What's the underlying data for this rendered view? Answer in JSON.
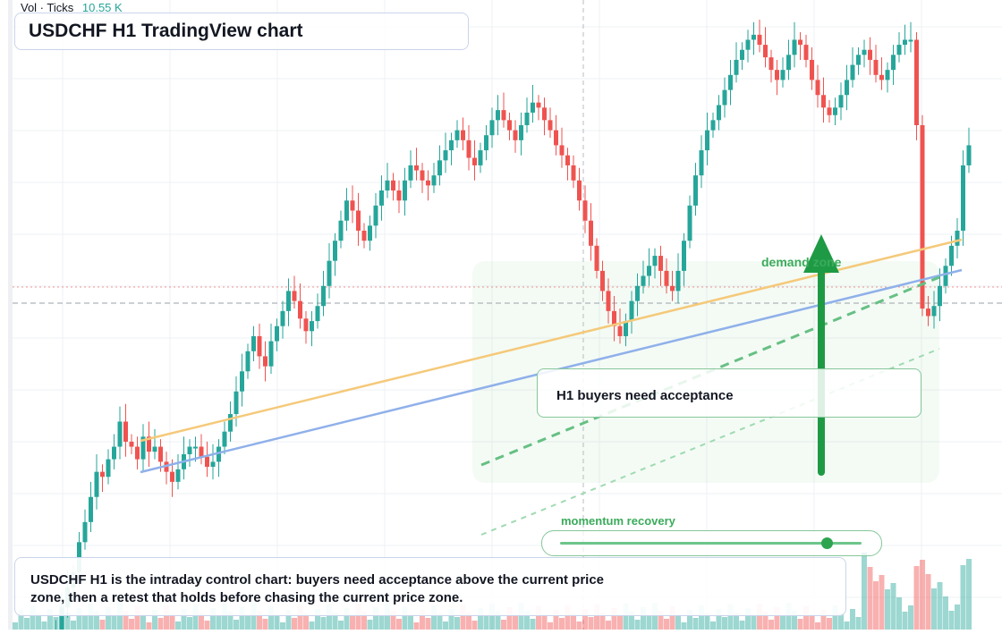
{
  "title": "USDCHF H1 TradingView chart",
  "volume_legend": {
    "label": "Vol · Ticks",
    "value": "10.55 K"
  },
  "callout": "H1 buyers need acceptance",
  "demand_label": "demand zone",
  "momentum": {
    "label": "momentum recovery",
    "level": 0.88
  },
  "note": "USDCHF H1 is the intraday control chart: buyers need acceptance above the current price zone, then a retest that holds before chasing the current price zone.",
  "colors": {
    "up": "#26a69a",
    "down": "#ef5350",
    "accent_green": "#2ea44f",
    "support_line": "#8fb0ea",
    "trend_line": "#f5c97a"
  },
  "chart_data": {
    "type": "candlestick",
    "symbol": "USDCHF",
    "timeframe": "H1",
    "ylim": [
      100,
      320
    ],
    "series_close": [
      6,
      18,
      38,
      50,
      54,
      61,
      68,
      76,
      86,
      94,
      100,
      112,
      120,
      130,
      140,
      138,
      145,
      150,
      160,
      152,
      150,
      145,
      154,
      148,
      150,
      144,
      140,
      136,
      141,
      147,
      150,
      150,
      146,
      142,
      144,
      150,
      156,
      163,
      172,
      180,
      188,
      194,
      186,
      182,
      192,
      198,
      204,
      212,
      208,
      201,
      196,
      200,
      206,
      214,
      224,
      232,
      240,
      248,
      244,
      236,
      232,
      238,
      246,
      252,
      256,
      252,
      248,
      256,
      262,
      260,
      256,
      254,
      258,
      264,
      268,
      272,
      276,
      272,
      265,
      262,
      268,
      274,
      280,
      284,
      280,
      276,
      272,
      278,
      283,
      287,
      285,
      280,
      276,
      270,
      266,
      262,
      256,
      248,
      240,
      230,
      220,
      212,
      204,
      198,
      194,
      200,
      208,
      214,
      218,
      222,
      226,
      220,
      214,
      212,
      220,
      232,
      246,
      258,
      268,
      276,
      280,
      286,
      292,
      298,
      304,
      308,
      312,
      314,
      310,
      305,
      300,
      296,
      300,
      306,
      312,
      310,
      304,
      296,
      290,
      285,
      282,
      285,
      290,
      296,
      302,
      306,
      308,
      304,
      298,
      296,
      300,
      306,
      310,
      312,
      312,
      278,
      205,
      202,
      206,
      214,
      222,
      230,
      236,
      262,
      270
    ]
  }
}
